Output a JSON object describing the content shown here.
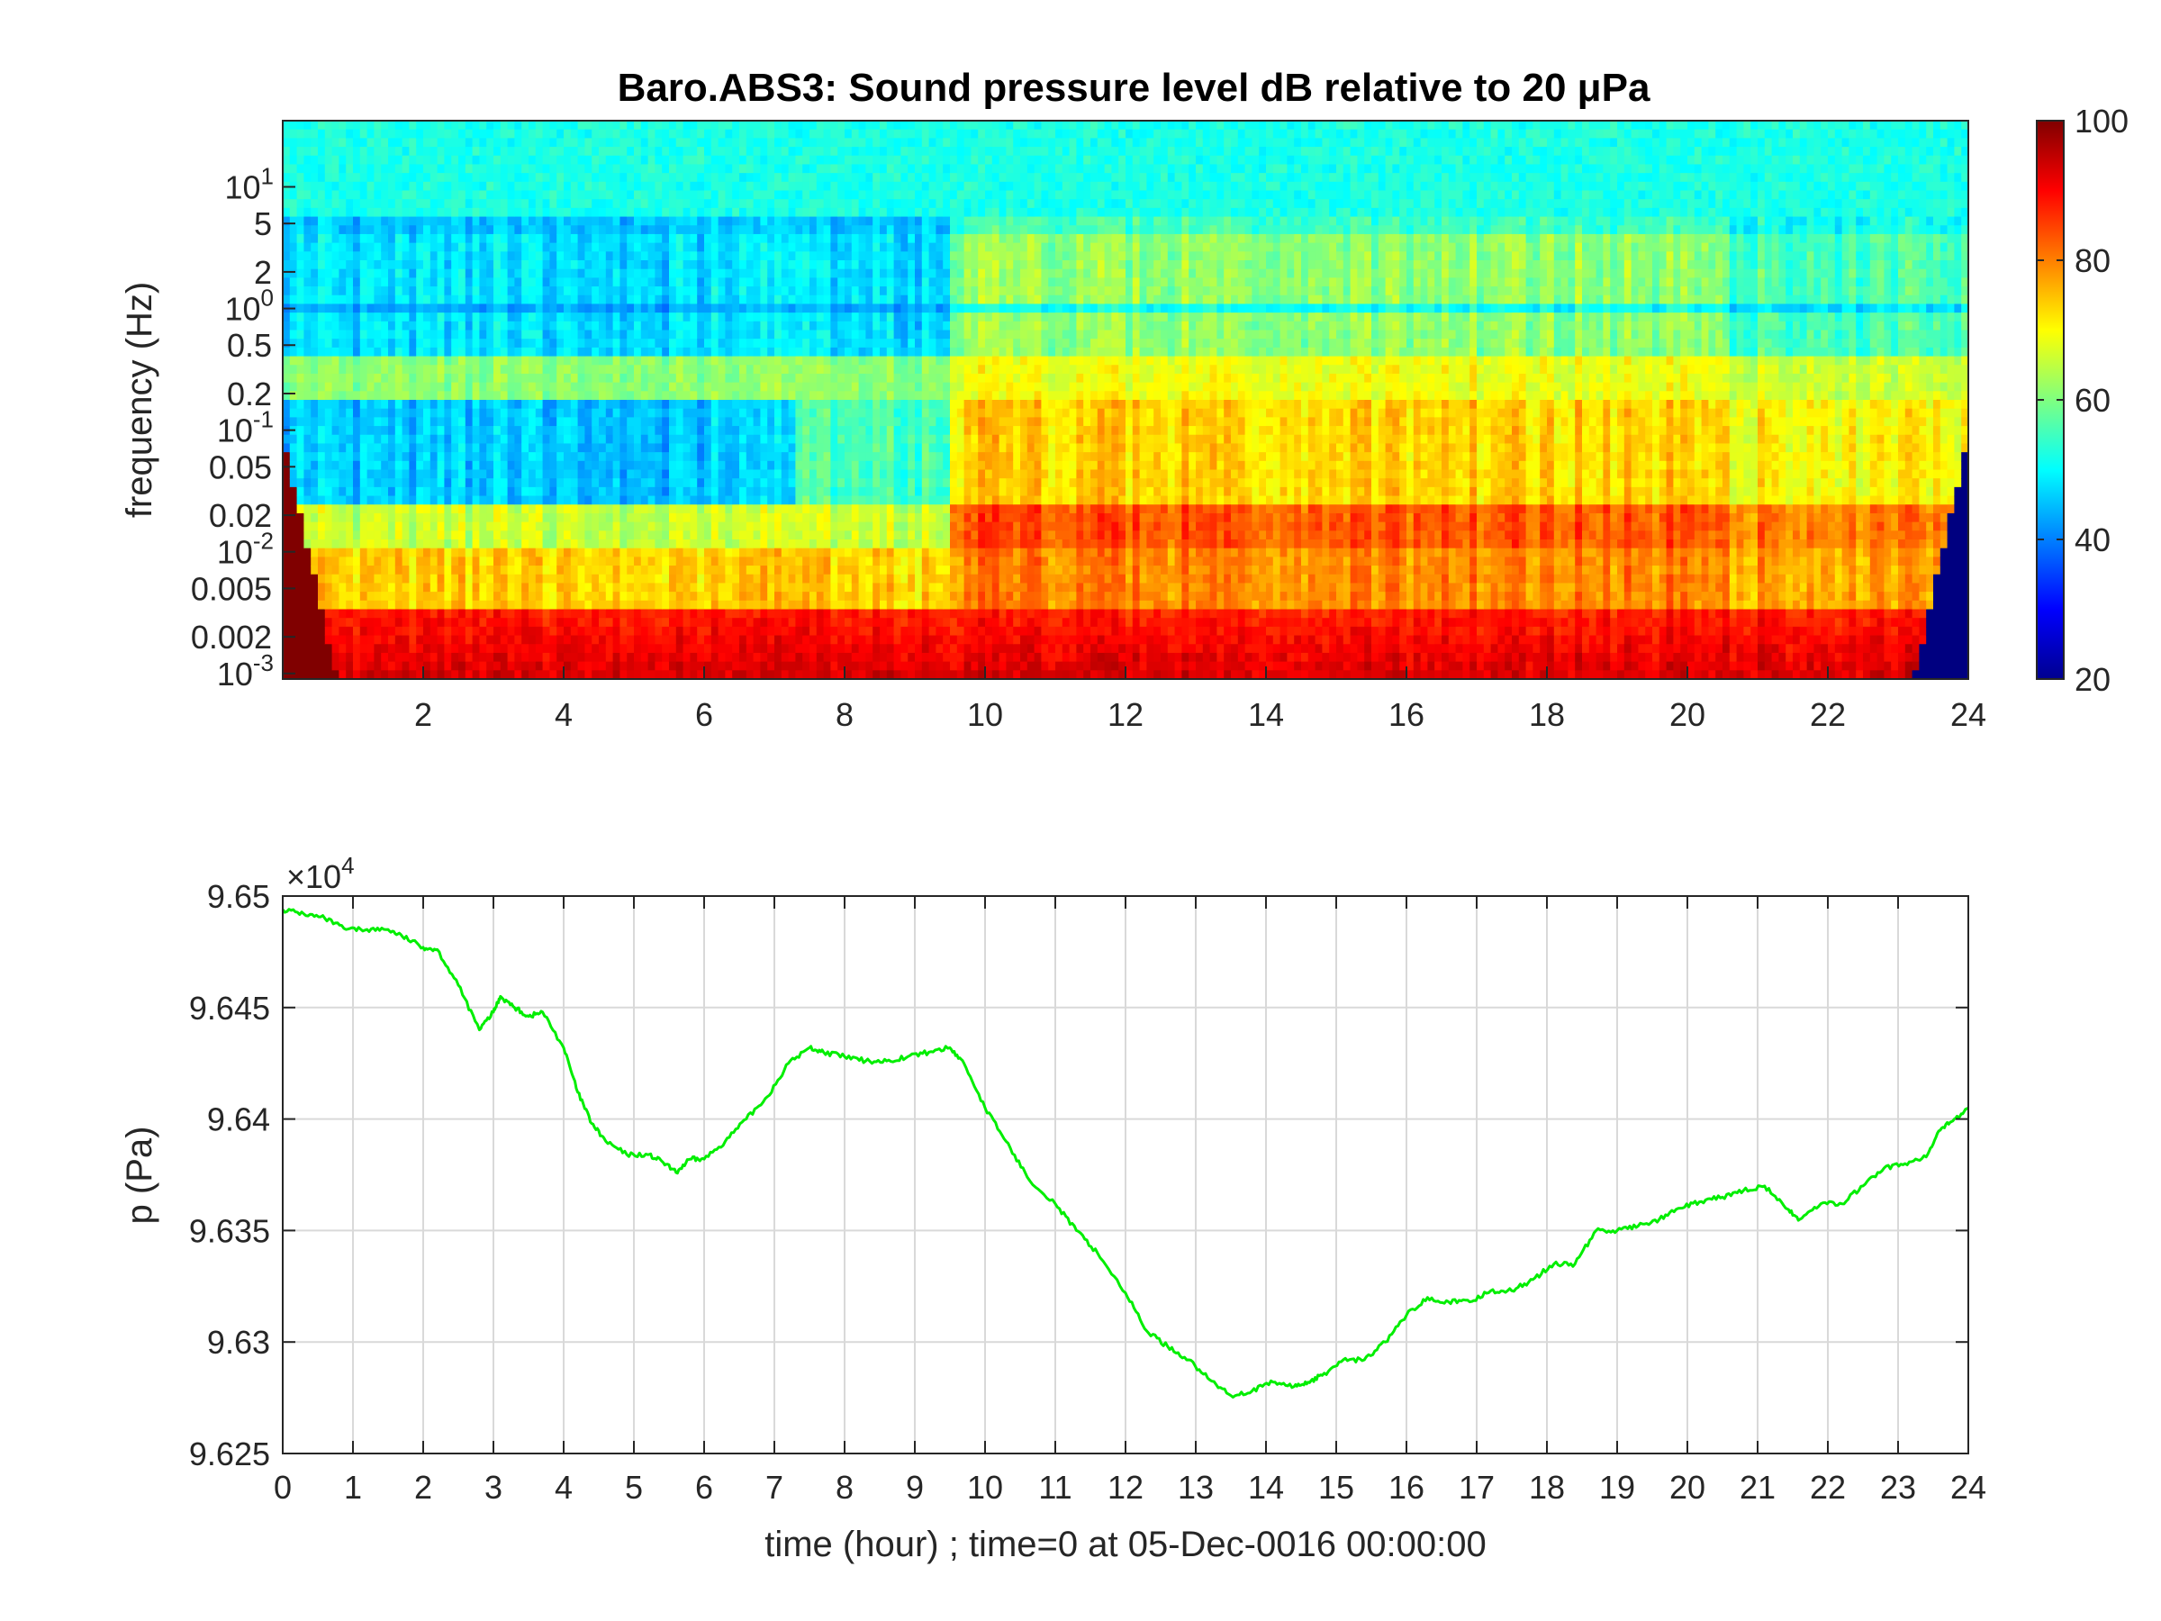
{
  "chart_data": [
    {
      "type": "heatmap",
      "title": "Baro.ABS3: Sound pressure level dB relative to 20 μPa",
      "ylabel": "frequency (Hz)",
      "xlabel": "",
      "xlim": [
        0,
        24
      ],
      "ylim": [
        0.0009,
        35
      ],
      "y_scale": "log",
      "x_ticks": [
        "2",
        "4",
        "6",
        "8",
        "10",
        "12",
        "14",
        "16",
        "18",
        "20",
        "22",
        "24"
      ],
      "y_ticks": [
        {
          "value": 10,
          "label": "10",
          "exp": "1"
        },
        {
          "value": 5,
          "label": "5"
        },
        {
          "value": 2,
          "label": "2"
        },
        {
          "value": 1,
          "label": "10",
          "exp": "0"
        },
        {
          "value": 0.5,
          "label": "0.5"
        },
        {
          "value": 0.2,
          "label": "0.2"
        },
        {
          "value": 0.1,
          "label": "10",
          "exp": "-1"
        },
        {
          "value": 0.05,
          "label": "0.05"
        },
        {
          "value": 0.02,
          "label": "0.02"
        },
        {
          "value": 0.01,
          "label": "10",
          "exp": "-2"
        },
        {
          "value": 0.005,
          "label": "0.005"
        },
        {
          "value": 0.002,
          "label": "0.002"
        },
        {
          "value": 0.001,
          "label": "10",
          "exp": "-3"
        }
      ],
      "colorbar": {
        "colormap": "jet",
        "range": [
          20,
          100
        ],
        "ticks": [
          "20",
          "40",
          "60",
          "80",
          "100"
        ]
      },
      "regimes": [
        {
          "t_start": 0,
          "t_end": 9.5,
          "activity": "low"
        },
        {
          "t_start": 9.5,
          "t_end": 15.2,
          "activity": "high"
        },
        {
          "t_start": 15.2,
          "t_end": 20.5,
          "activity": "high"
        },
        {
          "t_start": 20.5,
          "t_end": 24,
          "activity": "medium"
        }
      ],
      "bands": [
        {
          "freq_low": 6,
          "freq_high": 35,
          "level_db": 52
        },
        {
          "freq_low": 0.001,
          "freq_high": 0.003,
          "level_db": 92
        },
        {
          "freq_low": 0.15,
          "freq_high": 0.3,
          "level_db": 62
        }
      ]
    },
    {
      "type": "line",
      "title": "",
      "ylabel": "p (Pa)",
      "xlabel": "time (hour) ; time=0 at 05-Dec-0016 00:00:00",
      "y_multiplier": "×10",
      "y_multiplier_exp": "4",
      "xlim": [
        0,
        24
      ],
      "ylim": [
        9.625,
        9.65
      ],
      "grid": true,
      "line_color": "#00ee00",
      "x_ticks": [
        "0",
        "1",
        "2",
        "3",
        "4",
        "5",
        "6",
        "7",
        "8",
        "9",
        "10",
        "11",
        "12",
        "13",
        "14",
        "15",
        "16",
        "17",
        "18",
        "19",
        "20",
        "21",
        "22",
        "23",
        "24"
      ],
      "y_ticks": [
        "9.625",
        "9.63",
        "9.635",
        "9.64",
        "9.645",
        "9.65"
      ],
      "series": [
        {
          "x": [
            0,
            0.3,
            0.6,
            0.9,
            1.2,
            1.5,
            1.7,
            2.0,
            2.2,
            2.5,
            2.8,
            3.0,
            3.1,
            3.3,
            3.5,
            3.7,
            4.0,
            4.2,
            4.4,
            4.6,
            4.9,
            5.2,
            5.4,
            5.6,
            5.8,
            6.0,
            6.3,
            6.6,
            6.9,
            7.2,
            7.5,
            7.7,
            8.0,
            8.3,
            8.6,
            8.9,
            9.2,
            9.5,
            9.7,
            10.0,
            10.3,
            10.6,
            11.0,
            11.3,
            11.6,
            12.0,
            12.3,
            12.6,
            12.9,
            13.2,
            13.5,
            13.8,
            14.1,
            14.4,
            14.6,
            14.8,
            15.1,
            15.4,
            15.7,
            16.0,
            16.3,
            16.6,
            16.9,
            17.2,
            17.5,
            17.8,
            18.1,
            18.4,
            18.7,
            19.0,
            19.3,
            19.6,
            19.9,
            20.2,
            20.5,
            20.8,
            21.1,
            21.4,
            21.6,
            21.9,
            22.2,
            22.5,
            22.8,
            23.1,
            23.4,
            23.6,
            23.8,
            24.0
          ],
          "y": [
            9.6494,
            9.6492,
            9.649,
            9.6485,
            9.6485,
            9.6485,
            9.6482,
            9.6477,
            9.6476,
            9.646,
            9.644,
            9.6448,
            9.6455,
            9.645,
            9.6446,
            9.6448,
            9.6432,
            9.6412,
            9.6398,
            9.639,
            9.6384,
            9.6384,
            9.6381,
            9.6376,
            9.6382,
            9.6382,
            9.639,
            9.64,
            9.641,
            9.6425,
            9.6432,
            9.643,
            9.6428,
            9.6426,
            9.6426,
            9.6428,
            9.643,
            9.6432,
            9.6425,
            9.6405,
            9.639,
            9.6374,
            9.6362,
            9.635,
            9.634,
            9.6322,
            9.6305,
            9.6298,
            9.6292,
            9.6283,
            9.6276,
            9.6278,
            9.6282,
            9.628,
            9.6282,
            9.6285,
            9.6292,
            9.6292,
            9.63,
            9.6312,
            9.632,
            9.6318,
            9.6318,
            9.6323,
            9.6323,
            9.6328,
            9.6335,
            9.6335,
            9.635,
            9.635,
            9.6352,
            9.6355,
            9.636,
            9.6363,
            9.6365,
            9.6368,
            9.637,
            9.636,
            9.6355,
            9.6362,
            9.6362,
            9.637,
            9.6378,
            9.638,
            9.6383,
            9.6395,
            9.64,
            9.6405
          ]
        }
      ]
    }
  ]
}
